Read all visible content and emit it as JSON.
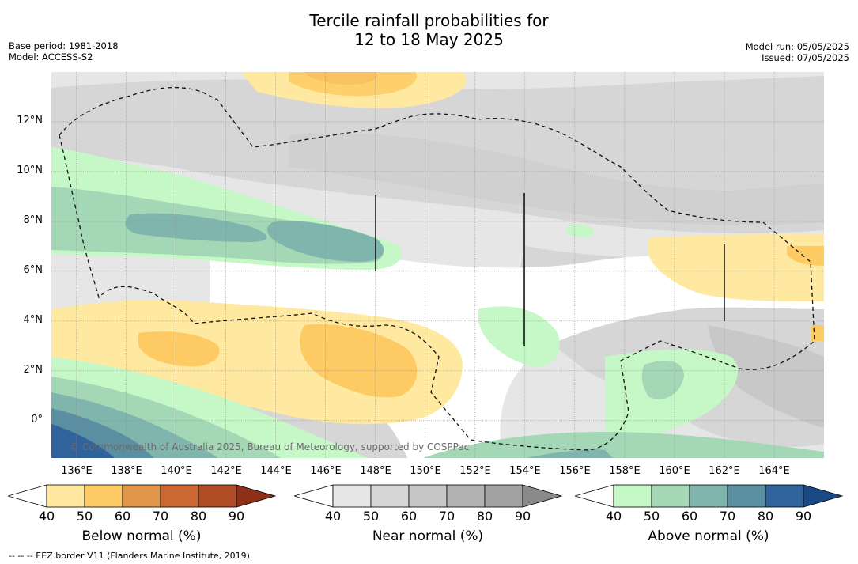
{
  "title_line1": "Tercile rainfall probabilities for",
  "title_line2": "12 to 18 May 2025",
  "meta_left": {
    "base_period": "Base period: 1981-2018",
    "model": "Model: ACCESS-S2"
  },
  "meta_right": {
    "model_run": "Model run: 05/05/2025",
    "issued": "Issued: 07/05/2025"
  },
  "map": {
    "lon_range": [
      135,
      166
    ],
    "lat_range": [
      -1.5,
      14
    ],
    "lat_labels": [
      {
        "value": 12,
        "text": "12°N"
      },
      {
        "value": 10,
        "text": "10°N"
      },
      {
        "value": 8,
        "text": "8°N"
      },
      {
        "value": 6,
        "text": "6°N"
      },
      {
        "value": 4,
        "text": "4°N"
      },
      {
        "value": 2,
        "text": "2°N"
      },
      {
        "value": 0,
        "text": "0°"
      }
    ],
    "lon_labels": [
      {
        "value": 136,
        "text": "136°E"
      },
      {
        "value": 138,
        "text": "138°E"
      },
      {
        "value": 140,
        "text": "140°E"
      },
      {
        "value": 142,
        "text": "142°E"
      },
      {
        "value": 144,
        "text": "144°E"
      },
      {
        "value": 146,
        "text": "146°E"
      },
      {
        "value": 148,
        "text": "148°E"
      },
      {
        "value": 150,
        "text": "150°E"
      },
      {
        "value": 152,
        "text": "152°E"
      },
      {
        "value": 154,
        "text": "154°E"
      },
      {
        "value": 156,
        "text": "156°E"
      },
      {
        "value": 158,
        "text": "158°E"
      },
      {
        "value": 160,
        "text": "160°E"
      },
      {
        "value": 162,
        "text": "162°E"
      },
      {
        "value": 164,
        "text": "164°E"
      }
    ],
    "grid": true,
    "credit": "© Commonwealth of Australia 2025, Bureau of Meteorology, supported by COSPPac"
  },
  "colorbars": [
    {
      "label": "Below normal (%)",
      "ticks": [
        "40",
        "50",
        "60",
        "70",
        "80",
        "90"
      ],
      "colors": [
        "#ffffff",
        "#ffe9a0",
        "#fdca64",
        "#e0964a",
        "#cc6834",
        "#b14d26",
        "#8e3018"
      ]
    },
    {
      "label": "Near normal (%)",
      "ticks": [
        "40",
        "50",
        "60",
        "70",
        "80",
        "90"
      ],
      "colors": [
        "#ffffff",
        "#e6e6e6",
        "#d6d6d6",
        "#c6c6c6",
        "#b3b3b3",
        "#a2a2a2",
        "#8a8a8a"
      ]
    },
    {
      "label": "Above normal (%)",
      "ticks": [
        "40",
        "50",
        "60",
        "70",
        "80",
        "90"
      ],
      "colors": [
        "#ffffff",
        "#c6f7c6",
        "#a3d7b5",
        "#7fb5ac",
        "#5a8fa2",
        "#30629b",
        "#1a4a86"
      ]
    }
  ],
  "footnote": "--  --  -- EEZ border V11 (Flanders Marine Institute, 2019)."
}
